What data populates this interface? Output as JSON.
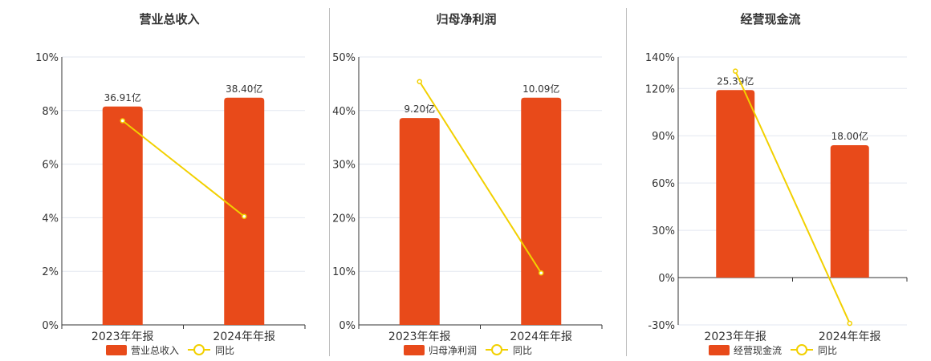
{
  "colors": {
    "bar": "#e84a1a",
    "line": "#f2d000",
    "grid": "#e3e7f0",
    "axis": "#333333",
    "divider": "#bdbdbd",
    "text": "#333333"
  },
  "chart_data": [
    {
      "type": "bar",
      "title": "营业总收入",
      "categories": [
        "2023年年报",
        "2024年年报"
      ],
      "bar_labels": [
        "36.91亿",
        "38.40亿"
      ],
      "series": [
        {
          "name": "营业总收入",
          "type": "bar",
          "values": [
            8.15,
            8.48
          ]
        },
        {
          "name": "同比",
          "type": "line",
          "values": [
            7.62,
            4.05
          ]
        }
      ],
      "yticks": [
        "10%",
        "8%",
        "6%",
        "4%",
        "2%",
        "0%"
      ],
      "ylim": [
        0,
        10
      ],
      "grid": true,
      "legend_placement": "bottom"
    },
    {
      "type": "bar",
      "title": "归母净利润",
      "categories": [
        "2023年年报",
        "2024年年报"
      ],
      "bar_labels": [
        "9.20亿",
        "10.09亿"
      ],
      "series": [
        {
          "name": "归母净利润",
          "type": "bar",
          "values": [
            38.6,
            42.4
          ]
        },
        {
          "name": "同比",
          "type": "line",
          "values": [
            45.4,
            9.7
          ]
        }
      ],
      "yticks": [
        "50%",
        "40%",
        "30%",
        "20%",
        "10%",
        "0%"
      ],
      "ylim": [
        0,
        50
      ],
      "grid": true,
      "legend_placement": "bottom"
    },
    {
      "type": "bar",
      "title": "经营现金流",
      "categories": [
        "2023年年报",
        "2024年年报"
      ],
      "bar_labels": [
        "25.39亿",
        "18.00亿"
      ],
      "series": [
        {
          "name": "经营现金流",
          "type": "bar",
          "values": [
            119,
            84
          ]
        },
        {
          "name": "同比",
          "type": "line",
          "values": [
            131,
            -29
          ]
        }
      ],
      "yticks": [
        "140%",
        "120%",
        "90%",
        "60%",
        "30%",
        "0%",
        "-30%"
      ],
      "ylim": [
        -30,
        140
      ],
      "grid": true,
      "legend_placement": "bottom"
    }
  ]
}
